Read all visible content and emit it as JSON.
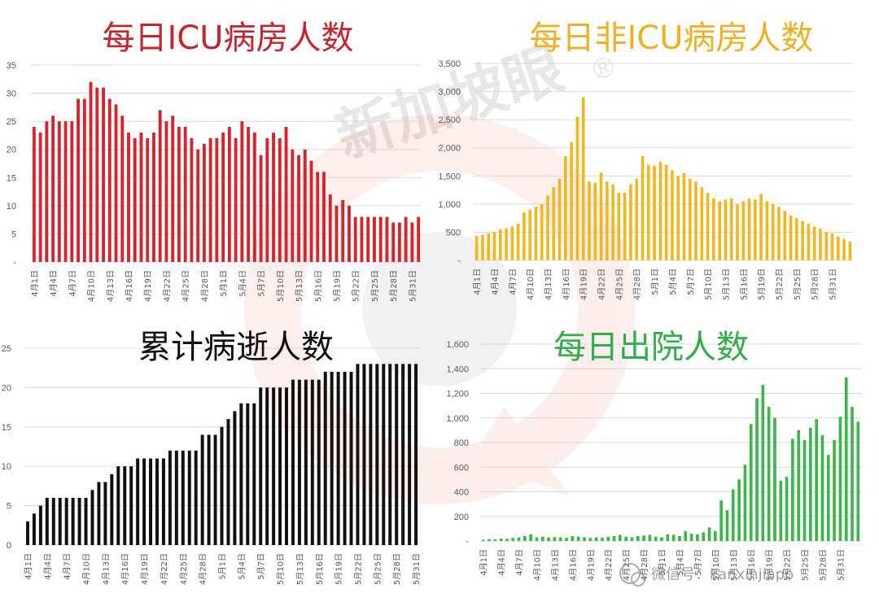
{
  "watermark": {
    "main": "新加坡眼",
    "registered": "®",
    "footer": "微信号：kanxinjiapo"
  },
  "chart_data": [
    {
      "type": "bar",
      "title": "每日ICU病房人数",
      "color": "#d9232b",
      "title_color": "#c8232c",
      "ylim": [
        0,
        35
      ],
      "yticks": [
        "-",
        "5",
        "10",
        "15",
        "20",
        "25",
        "30",
        "35"
      ],
      "xtick_labels": [
        "4月1日",
        "4月4日",
        "4月7日",
        "4月10日",
        "4月13日",
        "4月16日",
        "4月19日",
        "4月22日",
        "4月25日",
        "4月28日",
        "5月1日",
        "5月4日",
        "5月7日",
        "5月10日",
        "5月13日",
        "5月16日",
        "5月19日",
        "5月22日",
        "5月25日",
        "5月28日",
        "5月31日"
      ],
      "values": [
        24,
        23,
        25,
        26,
        25,
        25,
        25,
        29,
        29,
        32,
        31,
        31,
        29,
        28,
        26,
        23,
        22,
        23,
        22,
        23,
        27,
        25,
        26,
        24,
        24,
        22,
        20,
        21,
        22,
        22,
        23,
        24,
        22,
        25,
        24,
        23,
        19,
        22,
        23,
        22,
        24,
        20,
        19,
        20,
        18,
        16,
        16,
        12,
        10,
        11,
        10,
        8,
        8,
        8,
        8,
        8,
        8,
        7,
        7,
        8,
        7,
        8
      ],
      "grid": true
    },
    {
      "type": "bar",
      "title": "每日非ICU病房人数",
      "color": "#f2b61e",
      "title_color": "#f0b020",
      "ylim": [
        0,
        3500
      ],
      "yticks": [
        "-",
        "500",
        "1,000",
        "1,500",
        "2,000",
        "2,500",
        "3,000",
        "3,500"
      ],
      "xtick_labels": [
        "4月1日",
        "4月4日",
        "4月7日",
        "4月10日",
        "4月13日",
        "4月16日",
        "4月19日",
        "4月22日",
        "4月25日",
        "4月28日",
        "5月1日",
        "5月4日",
        "5月7日",
        "5月10日",
        "5月13日",
        "5月16日",
        "5月19日",
        "5月22日",
        "5月25日",
        "5月28日",
        "5月31日"
      ],
      "values": [
        430,
        450,
        480,
        500,
        550,
        570,
        600,
        650,
        850,
        900,
        950,
        1000,
        1150,
        1300,
        1450,
        1850,
        2100,
        2550,
        2900,
        1400,
        1380,
        1560,
        1400,
        1350,
        1200,
        1200,
        1350,
        1450,
        1850,
        1700,
        1680,
        1750,
        1700,
        1600,
        1500,
        1550,
        1450,
        1400,
        1300,
        1200,
        1100,
        1050,
        1080,
        1100,
        1000,
        1050,
        1100,
        1080,
        1180,
        1050,
        1000,
        950,
        880,
        800,
        750,
        700,
        650,
        600,
        560,
        500,
        480,
        420,
        380,
        330
      ],
      "grid": true
    },
    {
      "type": "bar",
      "title": "累计病逝人数",
      "color": "#111111",
      "title_color": "#111111",
      "ylim": [
        0,
        25
      ],
      "yticks": [
        "0",
        "5",
        "10",
        "15",
        "20",
        "25"
      ],
      "xtick_labels": [
        "4月1日",
        "4月4日",
        "4月7日",
        "4月10日",
        "4月13日",
        "4月16日",
        "4月19日",
        "4月22日",
        "4月25日",
        "4月28日",
        "5月1日",
        "5月4日",
        "5月7日",
        "5月10日",
        "5月13日",
        "5月16日",
        "5月19日",
        "5月22日",
        "5月25日",
        "5月28日",
        "5月31日"
      ],
      "values": [
        3,
        4,
        5,
        6,
        6,
        6,
        6,
        6,
        6,
        6,
        7,
        8,
        8,
        9,
        10,
        10,
        10,
        11,
        11,
        11,
        11,
        11,
        12,
        12,
        12,
        12,
        12,
        14,
        14,
        14,
        15,
        16,
        17,
        18,
        18,
        18,
        20,
        20,
        20,
        20,
        20,
        21,
        21,
        21,
        21,
        21,
        22,
        22,
        22,
        22,
        22,
        23,
        23,
        23,
        23,
        23,
        23,
        23,
        23,
        23,
        23
      ],
      "grid": true
    },
    {
      "type": "bar",
      "title": "每日出院人数",
      "color": "#3cb54a",
      "title_color": "#2fae4a",
      "ylim": [
        0,
        1600
      ],
      "yticks": [
        "-",
        "200",
        "400",
        "600",
        "800",
        "1,000",
        "1,200",
        "1,400",
        "1,600"
      ],
      "xtick_labels": [
        "4月1日",
        "4月4日",
        "4月7日",
        "4月10日",
        "4月13日",
        "4月16日",
        "4月19日",
        "4月22日",
        "4月25日",
        "4月28日",
        "5月1日",
        "5月4日",
        "5月7日",
        "5月10日",
        "5月13日",
        "5月16日",
        "5月19日",
        "5月22日",
        "5月25日",
        "5月28日",
        "5月31日"
      ],
      "values": [
        10,
        15,
        12,
        20,
        18,
        25,
        30,
        40,
        55,
        30,
        35,
        28,
        32,
        30,
        25,
        40,
        35,
        30,
        25,
        30,
        28,
        35,
        40,
        50,
        35,
        30,
        40,
        45,
        50,
        35,
        30,
        55,
        50,
        40,
        80,
        60,
        55,
        70,
        110,
        80,
        330,
        250,
        420,
        500,
        620,
        950,
        1160,
        1270,
        1090,
        1000,
        490,
        520,
        830,
        900,
        820,
        920,
        990,
        860,
        700,
        820,
        1010,
        1330,
        1090,
        970
      ],
      "grid": true
    }
  ]
}
